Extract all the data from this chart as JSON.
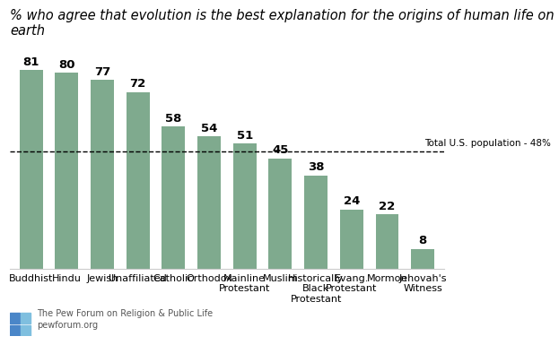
{
  "categories": [
    "Buddhist",
    "Hindu",
    "Jewish",
    "Unaffiliated",
    "Catholic",
    "Orthodox",
    "Mainline\nProtestant",
    "Muslim",
    "Historically\nBlack\nProtestant",
    "Evang.\nProtestant",
    "Mormon",
    "Jehovah's\nWitness"
  ],
  "values": [
    81,
    80,
    77,
    72,
    58,
    54,
    51,
    45,
    38,
    24,
    22,
    8
  ],
  "bar_color": "#7faa8e",
  "title": "% who agree that evolution is the best explanation for the origins of human life on earth",
  "title_fontsize": 10.5,
  "reference_line": 48,
  "reference_label": "Total U.S. population - 48%",
  "ylim": [
    0,
    95
  ],
  "value_fontsize": 9.5,
  "tick_fontsize": 8,
  "footer_text": "The Pew Forum on Religion & Public Life\npewforum.org",
  "footer_icon_colors": [
    "#4a86c8",
    "#7fbfdf"
  ]
}
